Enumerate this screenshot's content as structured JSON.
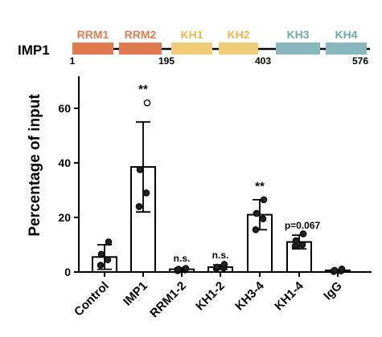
{
  "domain_diagram": {
    "protein_label": "IMP1",
    "domains": [
      {
        "name": "RRM1",
        "color": "#E07B50"
      },
      {
        "name": "RRM2",
        "color": "#E07B50"
      },
      {
        "name": "KH1",
        "color": "#F1CC78"
      },
      {
        "name": "KH2",
        "color": "#F1CC78"
      },
      {
        "name": "KH3",
        "color": "#86B8BE"
      },
      {
        "name": "KH4",
        "color": "#86B8BE"
      }
    ],
    "positions": [
      "1",
      "195",
      "403",
      "576"
    ]
  },
  "chart_data": {
    "type": "bar",
    "ylabel": "Percentage of input",
    "ylim": [
      0,
      70
    ],
    "yticks": [
      0,
      20,
      40,
      60
    ],
    "categories": [
      "Control",
      "IMP1",
      "RRM1-2",
      "KH1-2",
      "KH3-4",
      "KH1-4",
      "IgG"
    ],
    "values": [
      5.5,
      38.5,
      1.0,
      1.8,
      21.0,
      11.0,
      0.6
    ],
    "error": [
      4.5,
      16.5,
      0.5,
      0.8,
      5.5,
      2.5,
      0.3
    ],
    "points": [
      [
        2.5,
        4.5,
        6.5,
        11.0
      ],
      [
        24.0,
        29.0,
        37.5,
        62.0
      ],
      [
        0.5,
        0.8,
        1.0,
        1.3
      ],
      [
        1.3,
        1.5,
        1.8,
        2.8
      ],
      [
        15.5,
        19.5,
        21.5,
        26.5
      ],
      [
        9.5,
        10.0,
        11.5,
        14.0
      ],
      [
        0.2,
        0.4,
        0.6,
        1.1
      ]
    ],
    "annotations": [
      "",
      "**",
      "n.s.",
      "n.s.",
      "**",
      "p=0.067",
      ""
    ],
    "bar_fill": "#ffffff",
    "bar_stroke": "#000000"
  }
}
